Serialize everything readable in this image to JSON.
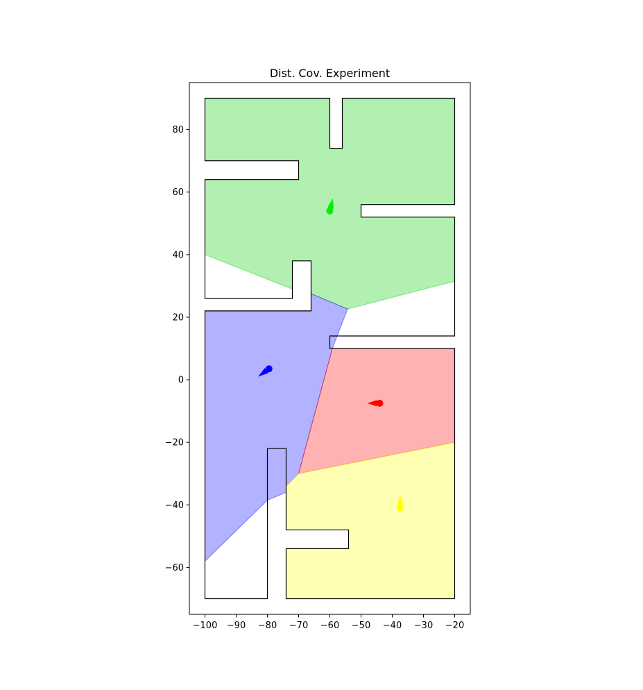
{
  "chart_data": {
    "type": "area",
    "title": "Dist. Cov. Experiment",
    "xlabel": "",
    "ylabel": "",
    "xlim": [
      -105,
      -15
    ],
    "ylim": [
      -75,
      95
    ],
    "xticks": [
      -100,
      -90,
      -80,
      -70,
      -60,
      -50,
      -40,
      -30,
      -20
    ],
    "yticks": [
      -60,
      -40,
      -20,
      0,
      20,
      40,
      60,
      80
    ],
    "grid": false,
    "environment_outline": [
      [
        -100,
        90
      ],
      [
        -60,
        90
      ],
      [
        -60,
        74
      ],
      [
        -56,
        74
      ],
      [
        -56,
        90
      ],
      [
        -20,
        90
      ],
      [
        -20,
        56
      ],
      [
        -50,
        56
      ],
      [
        -50,
        52
      ],
      [
        -20,
        52
      ],
      [
        -20,
        14
      ],
      [
        -60,
        14
      ],
      [
        -60,
        10
      ],
      [
        -20,
        10
      ],
      [
        -20,
        -70
      ],
      [
        -74,
        -70
      ],
      [
        -74,
        -54
      ],
      [
        -54,
        -54
      ],
      [
        -54,
        -48
      ],
      [
        -74,
        -48
      ],
      [
        -74,
        -22
      ],
      [
        -80,
        -22
      ],
      [
        -80,
        -70
      ],
      [
        -100,
        -70
      ],
      [
        -100,
        22
      ],
      [
        -66,
        22
      ],
      [
        -66,
        38
      ],
      [
        -72,
        38
      ],
      [
        -72,
        26
      ],
      [
        -100,
        26
      ],
      [
        -100,
        64
      ],
      [
        -70,
        64
      ],
      [
        -70,
        70
      ],
      [
        -100,
        70
      ]
    ],
    "regions": [
      {
        "color": "#00cc00",
        "polygon": [
          [
            -100,
            90
          ],
          [
            -60,
            90
          ],
          [
            -60,
            74
          ],
          [
            -56,
            74
          ],
          [
            -56,
            90
          ],
          [
            -20,
            90
          ],
          [
            -20,
            56
          ],
          [
            -50,
            56
          ],
          [
            -50,
            52
          ],
          [
            -20,
            52
          ],
          [
            -20,
            31.5
          ],
          [
            -54.3,
            22.6
          ],
          [
            -66,
            27.5
          ],
          [
            -66,
            38
          ],
          [
            -72,
            38
          ],
          [
            -72,
            29
          ],
          [
            -100,
            40
          ],
          [
            -100,
            64
          ],
          [
            -70,
            64
          ],
          [
            -70,
            70
          ],
          [
            -100,
            70
          ]
        ]
      },
      {
        "color": "#0000ff",
        "polygon": [
          [
            -100,
            22
          ],
          [
            -66,
            22
          ],
          [
            -66,
            27.5
          ],
          [
            -54.3,
            22.6
          ],
          [
            -59.2,
            10
          ],
          [
            -70,
            -30
          ],
          [
            -74,
            -34
          ],
          [
            -74,
            -36
          ],
          [
            -80,
            -38.5
          ],
          [
            -100,
            -58
          ]
        ]
      },
      {
        "color": "#ff0000",
        "polygon": [
          [
            -59.2,
            10
          ],
          [
            -20,
            10
          ],
          [
            -20,
            -20
          ],
          [
            -70,
            -30
          ]
        ]
      },
      {
        "color": "#ffff00",
        "polygon": [
          [
            -70,
            -30
          ],
          [
            -20,
            -20
          ],
          [
            -20,
            -70
          ],
          [
            -74,
            -70
          ],
          [
            -74,
            -54
          ],
          [
            -54,
            -54
          ],
          [
            -54,
            -48
          ],
          [
            -74,
            -48
          ],
          [
            -74,
            -34
          ]
        ]
      }
    ],
    "agents": [
      {
        "color": "#00ee00",
        "x": -60,
        "y": 54,
        "arrow": [
          -59,
          58
        ]
      },
      {
        "color": "#0000ff",
        "x": -79.5,
        "y": 3.5,
        "arrow": [
          -83,
          1
        ]
      },
      {
        "color": "#ff0000",
        "x": -44,
        "y": -7.5,
        "arrow": [
          -48,
          -7.5
        ]
      },
      {
        "color": "#ffff00",
        "x": -37.5,
        "y": -41,
        "arrow": [
          -37.5,
          -37
        ]
      }
    ]
  }
}
